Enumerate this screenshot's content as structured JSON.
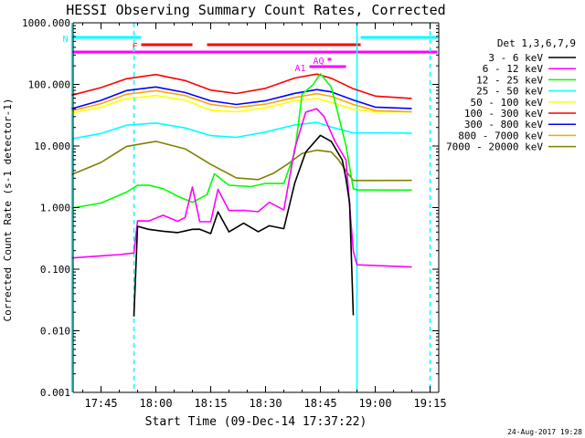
{
  "chart_data": {
    "type": "line",
    "title": "HESSI Observing Summary Count Rates, Corrected",
    "xlabel": "Start Time (09-Dec-14 17:37:22)",
    "ylabel": "Corrected Count Rate (s-1 detector-1)",
    "yscale": "log",
    "ylim": [
      0.001,
      1000
    ],
    "xlim": [
      "17:37:22",
      "19:17:22"
    ],
    "ytick_labels": [
      "1000.000",
      "100.000",
      "10.000",
      "1.000",
      "0.100",
      "0.010",
      "0.001"
    ],
    "xtick_labels": [
      "17:45",
      "18:00",
      "18:15",
      "18:30",
      "18:45",
      "19:00",
      "19:15"
    ],
    "legend_title": "Det 1,3,6,7,9",
    "legend_position": "right",
    "footer_date": "24-Aug-2017 19:28",
    "colors": {
      "3_6": "#000000",
      "6_12": "#ff00ff",
      "12_25": "#00ff00",
      "25_50": "#00ffff",
      "50_100": "#ffff00",
      "100_300": "#ff0000",
      "300_800": "#0000ff",
      "800_7000": "#ffa500",
      "7000_20000": "#808000",
      "flags_cyan": "#00ffff",
      "flags_red": "#ff0000",
      "flags_magenta": "#ff00ff"
    },
    "series": [
      {
        "name": "3 - 6 keV",
        "color": "#000000",
        "x": [
          "17:54",
          "17:55",
          "17:58",
          "18:02",
          "18:06",
          "18:10",
          "18:12",
          "18:15",
          "18:17",
          "18:20",
          "18:24",
          "18:28",
          "18:31",
          "18:35",
          "18:38",
          "18:41",
          "18:45",
          "18:48",
          "18:51",
          "18:52",
          "18:53",
          "18:54"
        ],
        "y": [
          0.017,
          0.5,
          0.45,
          0.42,
          0.4,
          0.45,
          0.45,
          0.38,
          0.85,
          0.4,
          0.55,
          0.4,
          0.5,
          0.45,
          2.5,
          8,
          15,
          12,
          6,
          3,
          1.2,
          0.018
        ]
      },
      {
        "name": "6 - 12 keV",
        "color": "#ff00ff",
        "x": [
          "17:37",
          "17:50",
          "17:54",
          "17:55",
          "17:58",
          "18:02",
          "18:06",
          "18:08",
          "18:10",
          "18:12",
          "18:15",
          "18:17",
          "18:20",
          "18:24",
          "18:28",
          "18:31",
          "18:35",
          "18:38",
          "18:41",
          "18:44",
          "18:46",
          "18:49",
          "18:52",
          "18:54",
          "18:55",
          "19:10"
        ],
        "y": [
          0.15,
          0.17,
          0.18,
          0.6,
          0.6,
          0.75,
          0.6,
          0.7,
          2.2,
          0.6,
          0.6,
          2.0,
          0.9,
          0.9,
          0.85,
          1.2,
          0.9,
          9,
          35,
          40,
          30,
          12,
          6,
          0.2,
          0.12,
          0.11
        ]
      },
      {
        "name": "12 - 25 keV",
        "color": "#00ff00",
        "x": [
          "17:37",
          "17:45",
          "17:52",
          "17:55",
          "17:58",
          "18:02",
          "18:06",
          "18:10",
          "18:14",
          "18:16",
          "18:20",
          "18:26",
          "18:30",
          "18:35",
          "18:38",
          "18:40",
          "18:43",
          "18:45",
          "18:48",
          "18:50",
          "18:52",
          "18:54",
          "18:55",
          "19:10"
        ],
        "y": [
          1.0,
          1.2,
          1.8,
          2.3,
          2.3,
          2.0,
          1.5,
          1.2,
          1.6,
          3.5,
          2.3,
          2.2,
          2.5,
          2.5,
          8,
          70,
          100,
          150,
          90,
          30,
          10,
          2.0,
          1.9,
          1.9
        ]
      },
      {
        "name": "25 - 50 keV",
        "color": "#00ffff",
        "x": [
          "17:37",
          "17:45",
          "17:52",
          "18:00",
          "18:08",
          "18:15",
          "18:22",
          "18:30",
          "18:38",
          "18:44",
          "18:48",
          "18:54",
          "18:55",
          "19:10"
        ],
        "y": [
          13,
          16,
          22,
          24,
          20,
          15,
          14,
          17,
          22,
          24,
          20,
          16,
          16,
          16
        ]
      },
      {
        "name": "50 - 100 keV",
        "color": "#ffff00",
        "x": [
          "17:37",
          "17:45",
          "17:52",
          "18:00",
          "18:08",
          "18:15",
          "18:22",
          "18:30",
          "18:38",
          "18:44",
          "18:48",
          "18:54",
          "19:00",
          "19:10"
        ],
        "y": [
          34,
          42,
          58,
          65,
          55,
          38,
          36,
          42,
          55,
          60,
          52,
          40,
          36,
          36
        ]
      },
      {
        "name": "100 - 300 keV",
        "color": "#ff0000",
        "x": [
          "17:37",
          "17:45",
          "17:52",
          "18:00",
          "18:08",
          "18:15",
          "18:22",
          "18:30",
          "18:38",
          "18:44",
          "18:48",
          "18:54",
          "19:00",
          "19:10"
        ],
        "y": [
          68,
          90,
          125,
          145,
          115,
          80,
          70,
          85,
          125,
          145,
          125,
          85,
          65,
          60
        ]
      },
      {
        "name": "300 - 800 keV",
        "color": "#0000ff",
        "x": [
          "17:37",
          "17:45",
          "17:52",
          "18:00",
          "18:08",
          "18:15",
          "18:22",
          "18:30",
          "18:38",
          "18:44",
          "18:48",
          "18:54",
          "19:00",
          "19:10"
        ],
        "y": [
          40,
          55,
          80,
          92,
          75,
          55,
          48,
          55,
          72,
          82,
          75,
          55,
          42,
          40
        ]
      },
      {
        "name": "800 - 7000 keV",
        "color": "#ffa500",
        "x": [
          "17:37",
          "17:45",
          "17:52",
          "18:00",
          "18:08",
          "18:15",
          "18:22",
          "18:30",
          "18:38",
          "18:44",
          "18:48",
          "18:54",
          "19:00",
          "19:10"
        ],
        "y": [
          37,
          48,
          68,
          78,
          65,
          47,
          42,
          48,
          62,
          72,
          65,
          48,
          38,
          36
        ]
      },
      {
        "name": "7000 - 20000 keV",
        "color": "#808000",
        "x": [
          "17:37",
          "17:45",
          "17:52",
          "18:00",
          "18:08",
          "18:15",
          "18:22",
          "18:28",
          "18:32",
          "18:36",
          "18:40",
          "18:44",
          "18:48",
          "18:50",
          "18:52",
          "18:54",
          "18:55",
          "19:10"
        ],
        "y": [
          3.5,
          5.5,
          10,
          12,
          9,
          5,
          3,
          2.8,
          3.5,
          5,
          7.5,
          8.5,
          8,
          6,
          4,
          2.8,
          2.8,
          2.8
        ]
      }
    ],
    "flags": [
      {
        "label": "N",
        "color": "#00ffff",
        "row": 1,
        "segments": [
          [
            "17:37",
            "17:56"
          ],
          [
            "18:56",
            "19:17"
          ]
        ]
      },
      {
        "label": "F",
        "color": "#ff0000",
        "row": 2,
        "segments": [
          [
            "17:56",
            "18:10"
          ],
          [
            "18:14",
            "18:56"
          ]
        ]
      },
      {
        "label": "",
        "color": "#ff00ff",
        "row": 3,
        "segments": [
          [
            "17:37",
            "19:17"
          ]
        ]
      },
      {
        "label": "AQ",
        "color": "#ff00ff",
        "row": 4,
        "segments": [
          [
            "18:47",
            "18:48"
          ]
        ]
      },
      {
        "label": "A1",
        "color": "#ff00ff",
        "row": 5,
        "segments": [
          [
            "18:42",
            "18:52"
          ]
        ]
      }
    ],
    "vlines": [
      {
        "x": "17:37",
        "color": "#00ffff",
        "style": "solid"
      },
      {
        "x": "17:54",
        "color": "#00ffff",
        "style": "dashed"
      },
      {
        "x": "18:55",
        "color": "#00ffff",
        "style": "solid"
      },
      {
        "x": "19:15",
        "color": "#00ffff",
        "style": "dashed"
      }
    ]
  }
}
